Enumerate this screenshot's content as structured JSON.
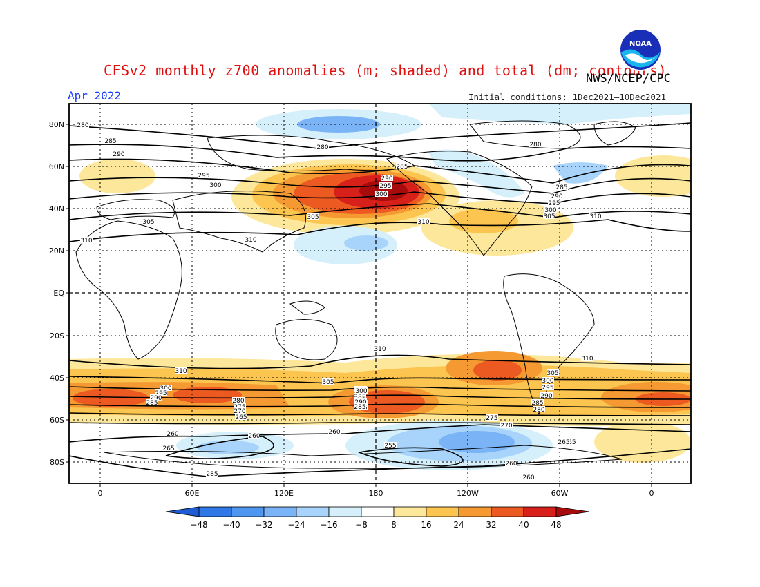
{
  "title": "CFSv2 monthly z700 anomalies (m; shaded) and total (dm; contours)",
  "agency": "NWS/NCEP/CPC",
  "month": "Apr 2022",
  "initial_conditions": "Initial conditions: 1Dec2021—10Dec2021",
  "logo": {
    "icon": "noaa-logo-icon",
    "text": "NOAA"
  },
  "lat_labels": [
    "80N",
    "60N",
    "40N",
    "20N",
    "EQ",
    "20S",
    "40S",
    "60S",
    "80S"
  ],
  "lon_labels": [
    "0",
    "60E",
    "120E",
    "180",
    "120W",
    "60W",
    "0"
  ],
  "colorbar": {
    "labels": [
      "−48",
      "−40",
      "−32",
      "−24",
      "−16",
      "−8",
      "8",
      "16",
      "24",
      "32",
      "40",
      "48"
    ],
    "colors": [
      "#1e5cd6",
      "#2f78e6",
      "#4f96f0",
      "#7ab4f6",
      "#a8d4fb",
      "#d5f0fb",
      "#ffffff",
      "#fce79a",
      "#fbc550",
      "#f59a32",
      "#ec5a22",
      "#d8201a",
      "#a80b0b"
    ]
  },
  "contour_labels": [
    {
      "t": "280"
    },
    {
      "t": "285"
    },
    {
      "t": "290"
    },
    {
      "t": "295"
    },
    {
      "t": "300"
    },
    {
      "t": "305"
    },
    {
      "t": "310"
    },
    {
      "t": "280"
    },
    {
      "t": "280"
    },
    {
      "t": "285"
    },
    {
      "t": "290"
    },
    {
      "t": "295"
    },
    {
      "t": "300"
    },
    {
      "t": "305"
    },
    {
      "t": "310"
    },
    {
      "t": "285"
    },
    {
      "t": "290"
    },
    {
      "t": "295"
    },
    {
      "t": "300"
    },
    {
      "t": "305"
    },
    {
      "t": "310"
    },
    {
      "t": "310"
    },
    {
      "t": "310"
    },
    {
      "t": "310"
    },
    {
      "t": "310"
    },
    {
      "t": "305"
    },
    {
      "t": "300"
    },
    {
      "t": "295"
    },
    {
      "t": "290"
    },
    {
      "t": "285"
    },
    {
      "t": "300"
    },
    {
      "t": "295"
    },
    {
      "t": "290"
    },
    {
      "t": "285"
    },
    {
      "t": "280"
    },
    {
      "t": "275"
    },
    {
      "t": "270"
    },
    {
      "t": "265"
    },
    {
      "t": "300"
    },
    {
      "t": "295"
    },
    {
      "t": "290"
    },
    {
      "t": "285"
    },
    {
      "t": "305"
    },
    {
      "t": "300"
    },
    {
      "t": "295"
    },
    {
      "t": "290"
    },
    {
      "t": "285"
    },
    {
      "t": "280"
    },
    {
      "t": "275"
    },
    {
      "t": "270"
    },
    {
      "t": "265"
    },
    {
      "t": "260"
    },
    {
      "t": "260"
    },
    {
      "t": "260"
    },
    {
      "t": "255"
    },
    {
      "t": "260"
    },
    {
      "t": "260"
    },
    {
      "t": "265"
    },
    {
      "t": "265"
    },
    {
      "t": "285"
    }
  ]
}
